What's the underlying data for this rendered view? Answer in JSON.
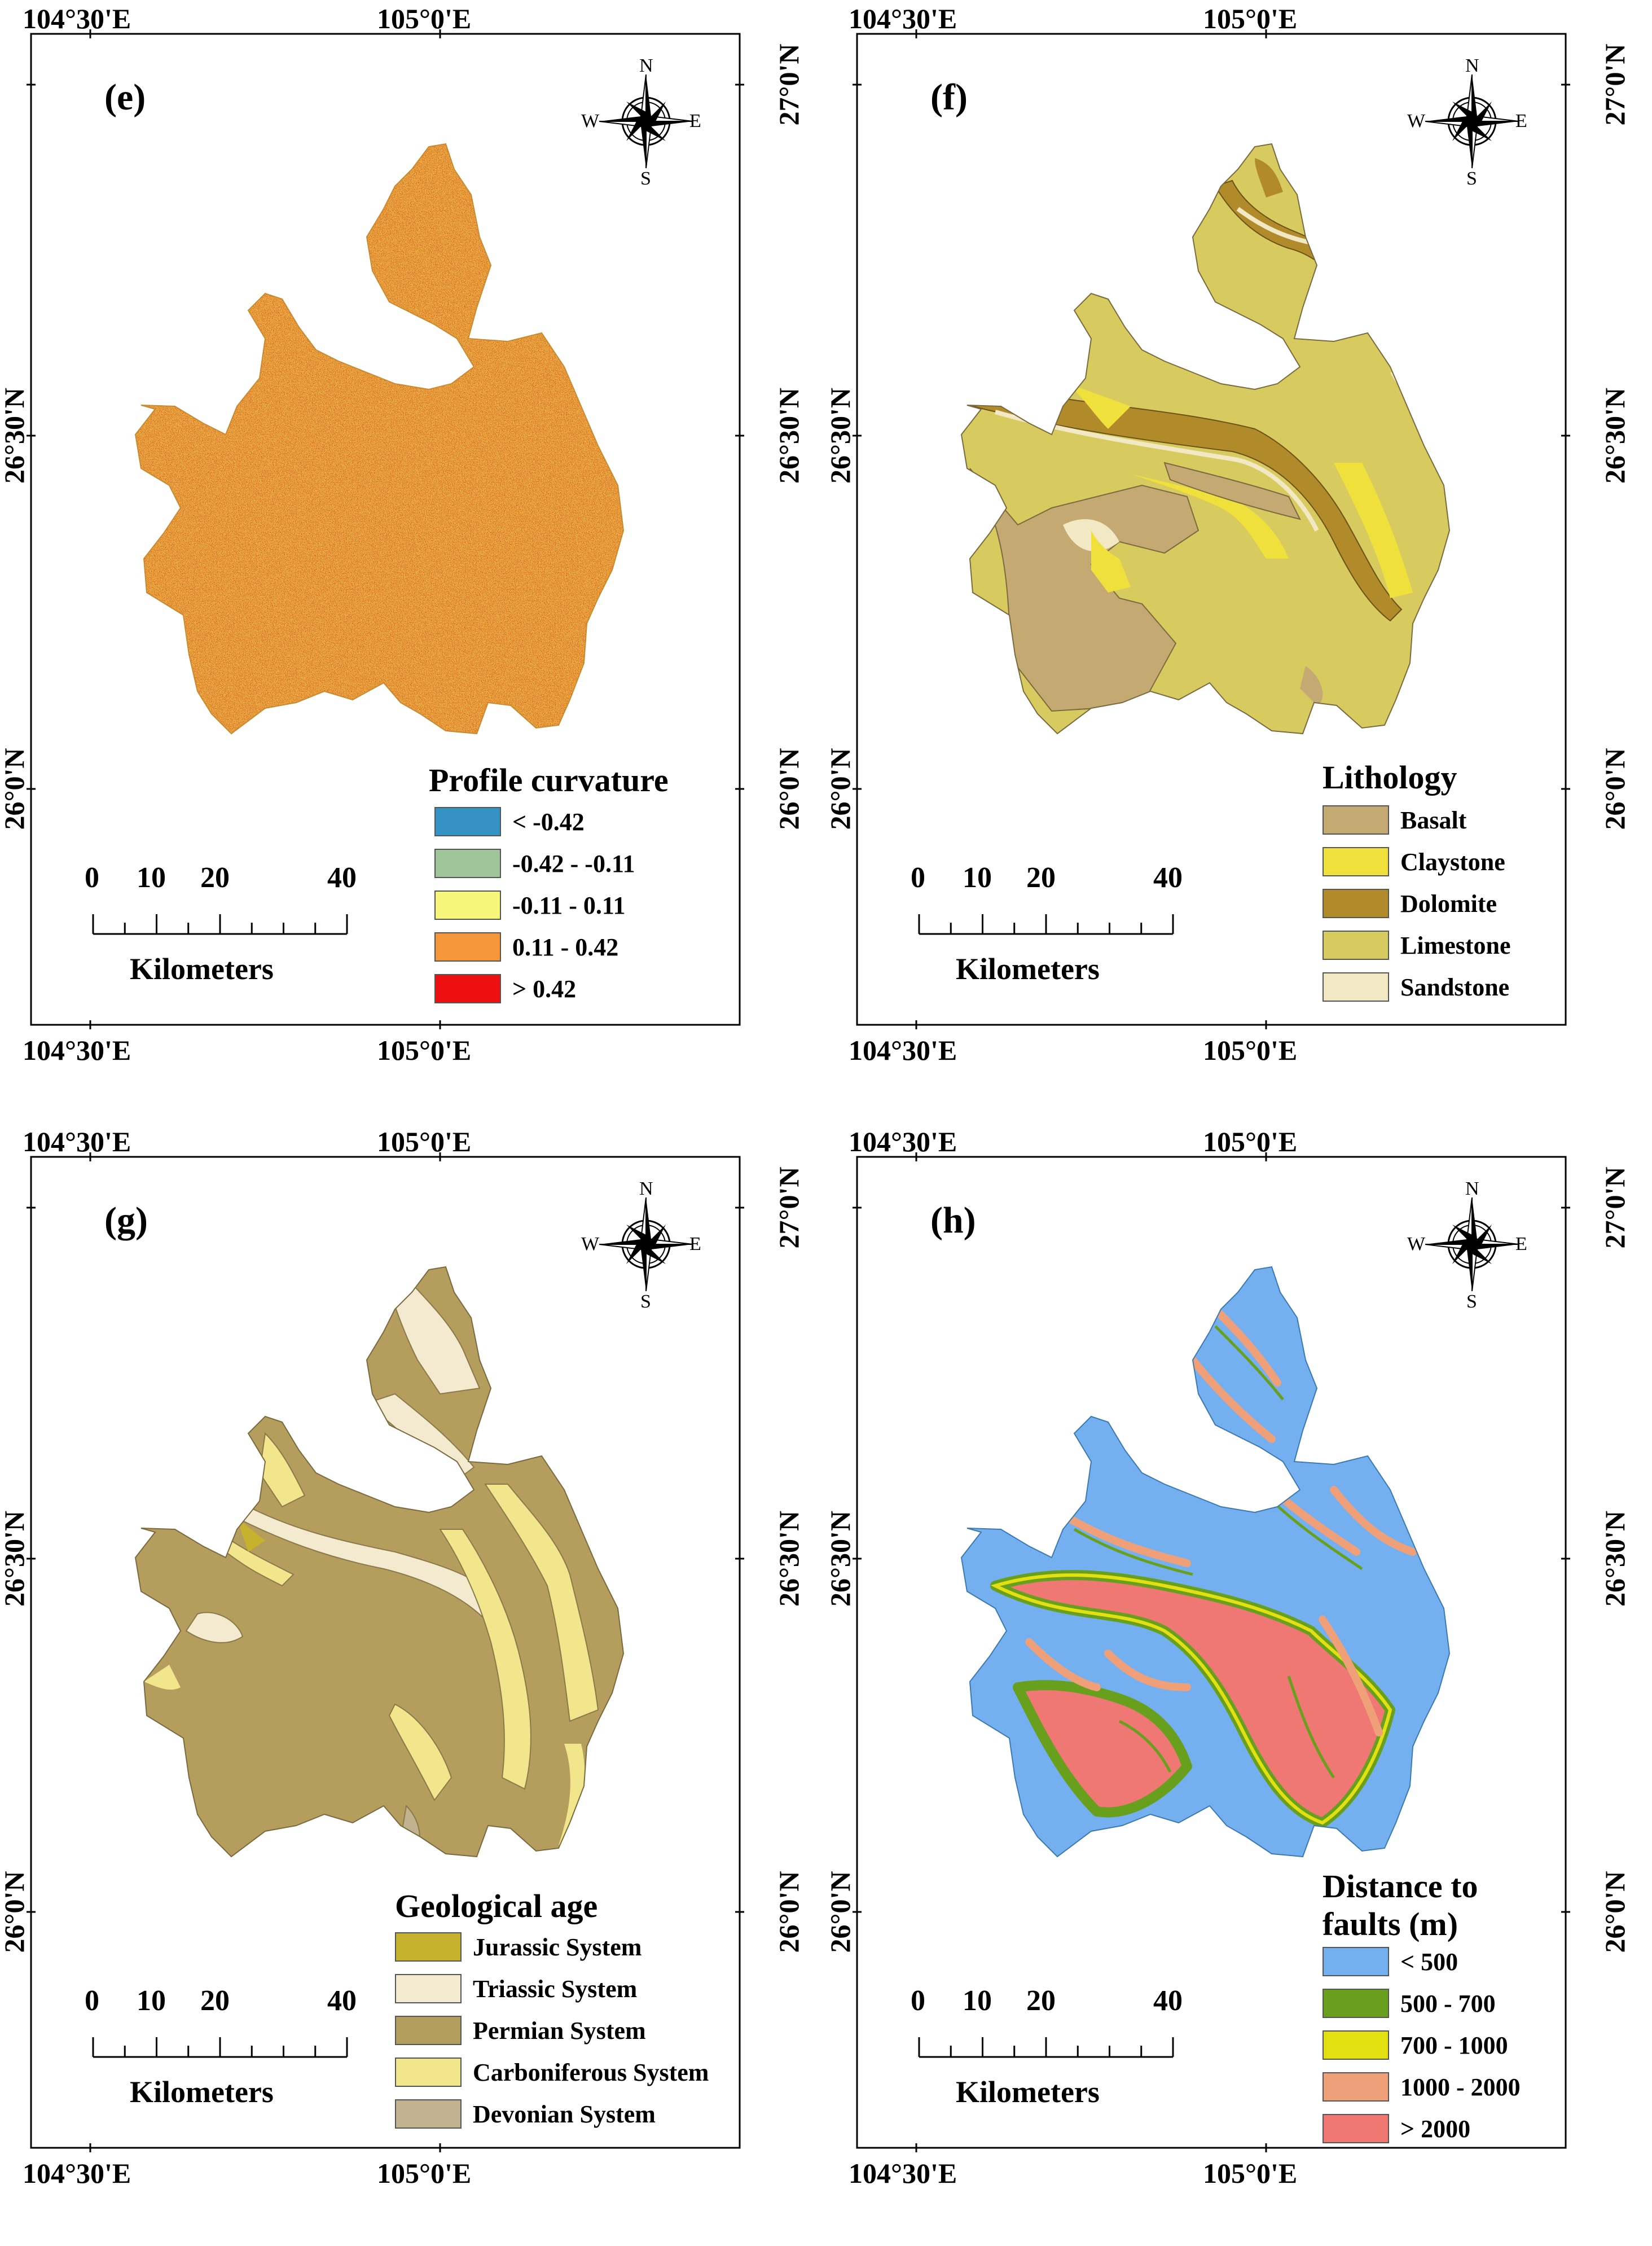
{
  "coords": {
    "lon_left": "104°30'E",
    "lon_right": "105°0'E",
    "lat_top": "27°0'N",
    "lat_mid": "26°30'N",
    "lat_bottom": "26°0'N"
  },
  "compass": {
    "n": "N",
    "s": "S",
    "e": "E",
    "w": "W"
  },
  "scalebar": {
    "ticks": [
      "0",
      "10",
      "20",
      "40"
    ],
    "unit": "Kilometers"
  },
  "panels": [
    {
      "label": "(e)",
      "legend_title": [
        "Profile curvature"
      ],
      "legend_items": [
        {
          "label": "< -0.42",
          "color": "#3592c4"
        },
        {
          "label": "-0.42 - -0.11",
          "color": "#a0c49a"
        },
        {
          "label": "-0.11 - 0.11",
          "color": "#f6f77a"
        },
        {
          "label": "0.11 - 0.42",
          "color": "#f6963a"
        },
        {
          "label": "> 0.42",
          "color": "#ee1010"
        }
      ]
    },
    {
      "label": "(f)",
      "legend_title": [
        "Lithology"
      ],
      "legend_items": [
        {
          "label": "Basalt",
          "color": "#c4aa72"
        },
        {
          "label": "Claystone",
          "color": "#f0e03c"
        },
        {
          "label": "Dolomite",
          "color": "#b18a2a"
        },
        {
          "label": "Limestone",
          "color": "#d7cb60"
        },
        {
          "label": "Sandstone",
          "color": "#f2e8c4"
        }
      ]
    },
    {
      "label": "(g)",
      "legend_title": [
        "Geological age"
      ],
      "legend_items": [
        {
          "label": "Jurassic System",
          "color": "#c7b22e"
        },
        {
          "label": "Triassic System",
          "color": "#f3ead0"
        },
        {
          "label": "Permian System",
          "color": "#b59d5e"
        },
        {
          "label": "Carboniferous System",
          "color": "#f2e68c"
        },
        {
          "label": "Devonian System",
          "color": "#c2b290"
        }
      ]
    },
    {
      "label": "(h)",
      "legend_title": [
        "Distance to",
        "faults (m)"
      ],
      "legend_items": [
        {
          "label": "< 500",
          "color": "#74b0f0"
        },
        {
          "label": "500 - 700",
          "color": "#68a01e"
        },
        {
          "label": "700 - 1000",
          "color": "#e2e010"
        },
        {
          "label": "1000 - 2000",
          "color": "#f0a078"
        },
        {
          "label": "> 2000",
          "color": "#f07874"
        }
      ]
    }
  ]
}
